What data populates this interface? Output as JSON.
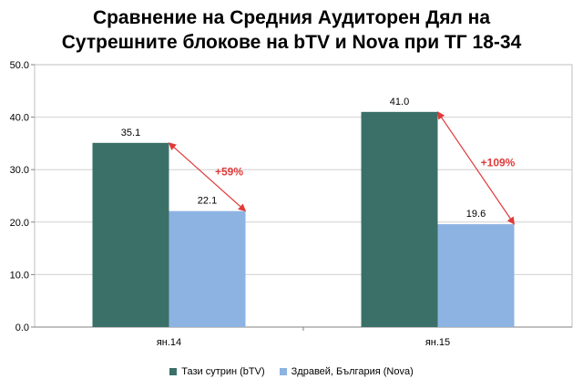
{
  "title_line1": "Сравнение на Средния Аудиторен Дял на",
  "title_line2": "Сутрешните блокове на bTV и Nova при ТГ 18-34",
  "chart_data": {
    "type": "bar",
    "title": "Сравнение на Средния Аудиторен Дял на Сутрешните блокове на bTV и Nova при ТГ 18-34",
    "categories": [
      "ян.14",
      "ян.15"
    ],
    "series": [
      {
        "name": "Тази сутрин (bTV)",
        "values": [
          35.1,
          41.0
        ],
        "labels": [
          "35.1",
          "41.0"
        ],
        "color": "#3b7068"
      },
      {
        "name": "Здравей, България (Nova)",
        "values": [
          22.1,
          19.6
        ],
        "labels": [
          "22.1",
          "19.6"
        ],
        "color": "#8db3e2"
      }
    ],
    "ylim": [
      0,
      50
    ],
    "yticks": [
      "0.0",
      "10.0",
      "20.0",
      "30.0",
      "40.0",
      "50.0"
    ],
    "grid": true,
    "legend": "bottom",
    "annotations": [
      "+59%",
      "+109%"
    ],
    "annotation_color": "#e03a3a"
  }
}
